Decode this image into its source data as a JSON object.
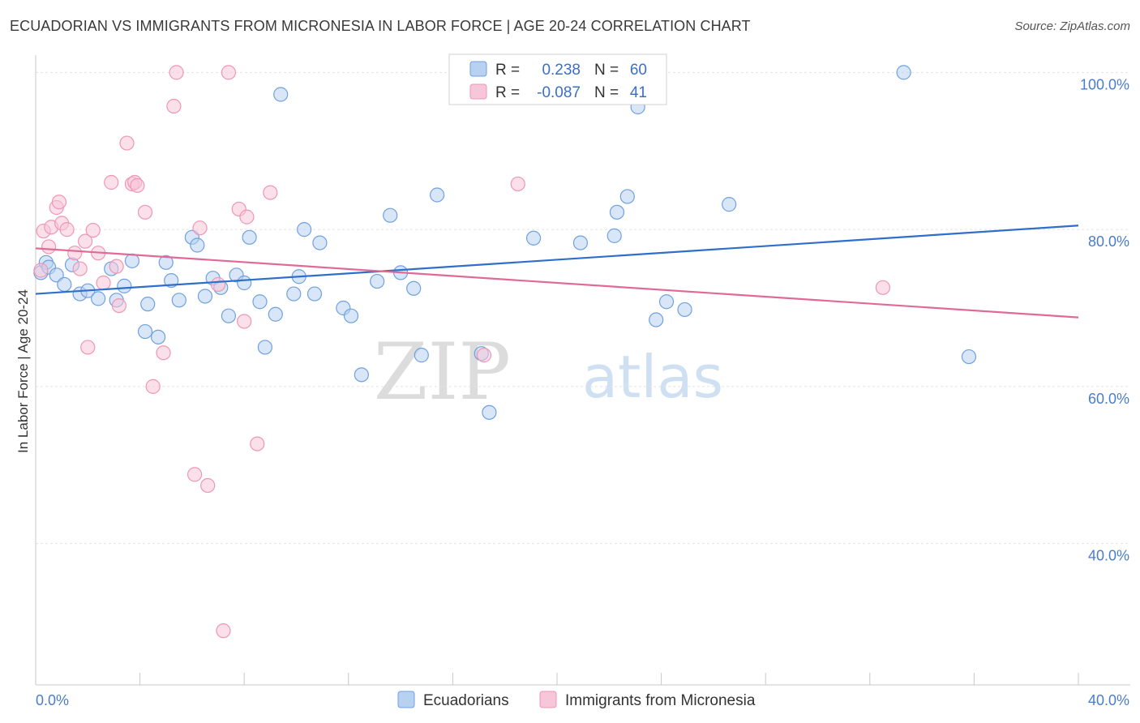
{
  "title": "ECUADORIAN VS IMMIGRANTS FROM MICRONESIA IN LABOR FORCE | AGE 20-24 CORRELATION CHART",
  "source": "Source: ZipAtlas.com",
  "watermark": {
    "zip": "ZIP",
    "atlas": "atlas"
  },
  "legend": {
    "rows": [
      {
        "r_label": "R =",
        "r_value": "0.238",
        "n_label": "N =",
        "n_value": "60"
      },
      {
        "r_label": "R =",
        "r_value": "-0.087",
        "n_label": "N =",
        "n_value": "41"
      }
    ]
  },
  "chart_data": {
    "type": "scatter",
    "xlabel": "",
    "ylabel": "In Labor Force | Age 20-24",
    "xlim": [
      0,
      40
    ],
    "ylim": [
      22,
      102
    ],
    "x_tick_labels": [
      {
        "value": 0,
        "label": "0.0%"
      },
      {
        "value": 40,
        "label": "40.0%"
      }
    ],
    "y_tick_labels": [
      {
        "value": 100,
        "label": "100.0%"
      },
      {
        "value": 80,
        "label": "80.0%"
      },
      {
        "value": 60,
        "label": "60.0%"
      },
      {
        "value": 40,
        "label": "40.0%"
      }
    ],
    "grid": true,
    "legend_position": "top-center",
    "series": [
      {
        "name": "Ecuadorians",
        "color": "#6fa1e0",
        "fill": "#b8d1f1",
        "trend": {
          "x": [
            0,
            40
          ],
          "y": [
            71.8,
            80.5
          ],
          "color": "#2f6fcb"
        },
        "points": [
          [
            0.2,
            74.5
          ],
          [
            0.4,
            75.8
          ],
          [
            0.5,
            75.2
          ],
          [
            0.8,
            74.2
          ],
          [
            1.1,
            73.0
          ],
          [
            1.4,
            75.5
          ],
          [
            1.7,
            71.8
          ],
          [
            2.0,
            72.2
          ],
          [
            2.4,
            71.2
          ],
          [
            2.9,
            75.0
          ],
          [
            3.1,
            71.0
          ],
          [
            3.4,
            72.8
          ],
          [
            3.7,
            76.0
          ],
          [
            4.2,
            67.0
          ],
          [
            4.3,
            70.5
          ],
          [
            4.7,
            66.3
          ],
          [
            5.0,
            75.8
          ],
          [
            5.2,
            73.5
          ],
          [
            5.5,
            71.0
          ],
          [
            6.0,
            79.0
          ],
          [
            6.2,
            78.0
          ],
          [
            6.5,
            71.5
          ],
          [
            6.8,
            73.8
          ],
          [
            7.1,
            72.6
          ],
          [
            7.4,
            69.0
          ],
          [
            7.7,
            74.2
          ],
          [
            8.0,
            73.2
          ],
          [
            8.2,
            79.0
          ],
          [
            8.6,
            70.8
          ],
          [
            8.8,
            65.0
          ],
          [
            9.2,
            69.2
          ],
          [
            9.4,
            97.2
          ],
          [
            9.9,
            71.8
          ],
          [
            10.1,
            74.0
          ],
          [
            10.3,
            80.0
          ],
          [
            10.7,
            71.8
          ],
          [
            10.9,
            78.3
          ],
          [
            11.8,
            70.0
          ],
          [
            12.1,
            69.0
          ],
          [
            12.5,
            61.5
          ],
          [
            13.1,
            73.4
          ],
          [
            13.6,
            81.8
          ],
          [
            14.0,
            74.5
          ],
          [
            14.5,
            72.5
          ],
          [
            14.8,
            64.0
          ],
          [
            15.4,
            84.4
          ],
          [
            17.1,
            64.2
          ],
          [
            17.4,
            56.7
          ],
          [
            19.1,
            78.9
          ],
          [
            20.9,
            78.3
          ],
          [
            22.2,
            79.2
          ],
          [
            22.3,
            82.2
          ],
          [
            22.7,
            84.2
          ],
          [
            23.1,
            95.6
          ],
          [
            23.8,
            68.5
          ],
          [
            24.2,
            70.8
          ],
          [
            24.9,
            69.8
          ],
          [
            26.6,
            83.2
          ],
          [
            33.3,
            100.0
          ],
          [
            35.8,
            63.8
          ]
        ]
      },
      {
        "name": "Immigrants from Micronesia",
        "color": "#ee96b6",
        "fill": "#f7c6d8",
        "trend": {
          "x": [
            0,
            40
          ],
          "y": [
            77.6,
            68.8
          ],
          "color": "#e06a97"
        },
        "points": [
          [
            0.2,
            74.8
          ],
          [
            0.3,
            79.8
          ],
          [
            0.5,
            77.8
          ],
          [
            0.6,
            80.3
          ],
          [
            0.8,
            82.8
          ],
          [
            0.9,
            83.5
          ],
          [
            1.0,
            80.8
          ],
          [
            1.2,
            80.0
          ],
          [
            1.5,
            77.0
          ],
          [
            1.7,
            75.0
          ],
          [
            1.9,
            78.5
          ],
          [
            2.0,
            65.0
          ],
          [
            2.2,
            79.9
          ],
          [
            2.4,
            77.0
          ],
          [
            2.6,
            73.2
          ],
          [
            2.9,
            86.0
          ],
          [
            3.1,
            75.3
          ],
          [
            3.2,
            70.3
          ],
          [
            3.5,
            91.0
          ],
          [
            3.7,
            85.8
          ],
          [
            3.8,
            86.0
          ],
          [
            3.9,
            85.6
          ],
          [
            4.2,
            82.2
          ],
          [
            4.5,
            60.0
          ],
          [
            4.9,
            64.3
          ],
          [
            5.3,
            95.7
          ],
          [
            5.4,
            100.0
          ],
          [
            6.1,
            48.8
          ],
          [
            6.3,
            80.2
          ],
          [
            6.6,
            47.4
          ],
          [
            7.0,
            73.0
          ],
          [
            7.2,
            28.9
          ],
          [
            7.4,
            100.0
          ],
          [
            7.8,
            82.6
          ],
          [
            8.0,
            68.3
          ],
          [
            8.1,
            81.6
          ],
          [
            8.5,
            52.7
          ],
          [
            9.0,
            84.7
          ],
          [
            17.2,
            64.0
          ],
          [
            18.5,
            85.8
          ],
          [
            32.5,
            72.6
          ]
        ]
      }
    ]
  }
}
